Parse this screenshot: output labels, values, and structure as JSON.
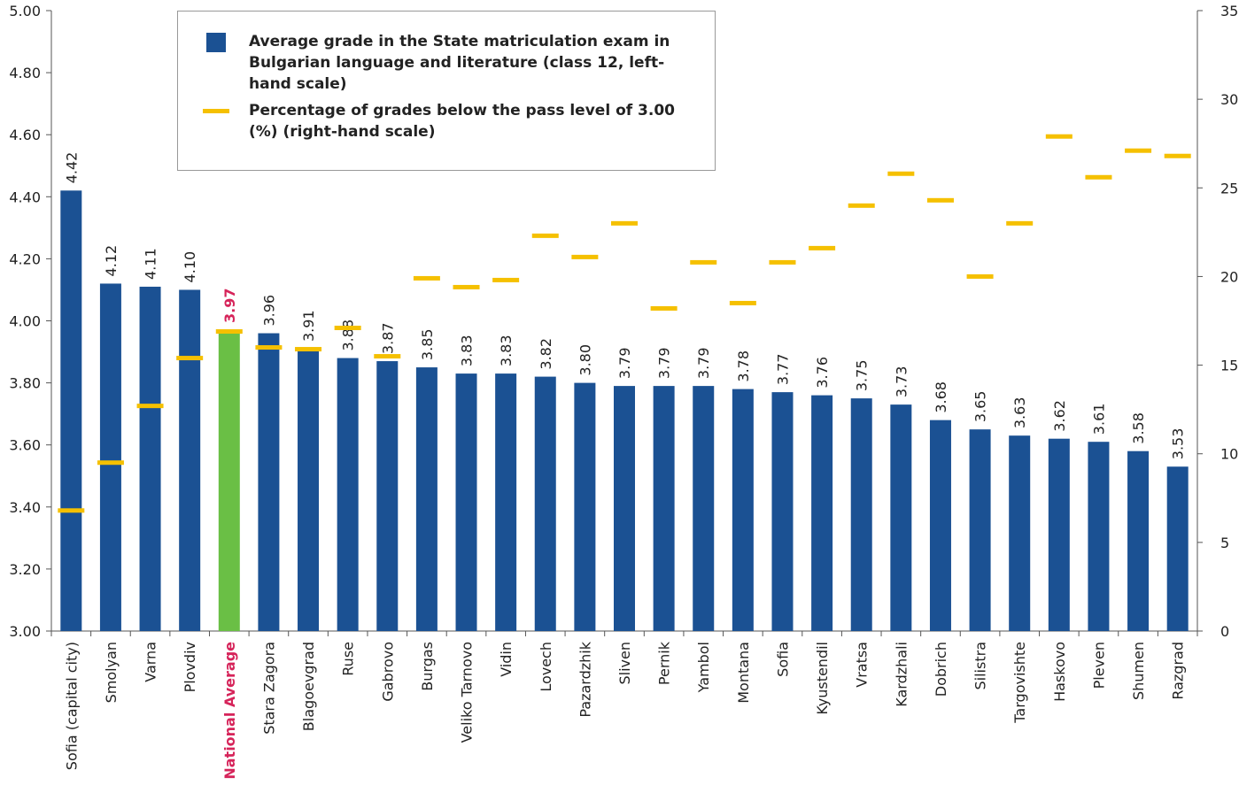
{
  "chart_data": {
    "type": "bar",
    "categories": [
      "Sofia (capital city)",
      "Smolyan",
      "Varna",
      "Plovdiv",
      "National Average",
      "Stara Zagora",
      "Blagoevgrad",
      "Ruse",
      "Gabrovo",
      "Burgas",
      "Veliko Tarnovo",
      "Vidin",
      "Lovech",
      "Pazardzhik",
      "Sliven",
      "Pernik",
      "Yambol",
      "Montana",
      "Sofia",
      "Kyustendil",
      "Vratsa",
      "Kardzhali",
      "Dobrich",
      "Silistra",
      "Targovishte",
      "Haskovo",
      "Pleven",
      "Shumen",
      "Razgrad"
    ],
    "label_colors": [
      "#222222",
      "#222222",
      "#222222",
      "#222222",
      "#d6245a",
      "#222222",
      "#222222",
      "#222222",
      "#222222",
      "#222222",
      "#222222",
      "#222222",
      "#222222",
      "#222222",
      "#222222",
      "#222222",
      "#222222",
      "#222222",
      "#222222",
      "#222222",
      "#222222",
      "#222222",
      "#222222",
      "#222222",
      "#222222",
      "#222222",
      "#222222",
      "#222222",
      "#222222"
    ],
    "series": [
      {
        "name": "Average grade in the State matriculation exam in Bulgarian language and literature (class 12, left-hand scale)",
        "color": "#1b5193",
        "colors": [
          "#1b5193",
          "#1b5193",
          "#1b5193",
          "#1b5193",
          "#6abf45",
          "#1b5193",
          "#1b5193",
          "#1b5193",
          "#1b5193",
          "#1b5193",
          "#1b5193",
          "#1b5193",
          "#1b5193",
          "#1b5193",
          "#1b5193",
          "#1b5193",
          "#1b5193",
          "#1b5193",
          "#1b5193",
          "#1b5193",
          "#1b5193",
          "#1b5193",
          "#1b5193",
          "#1b5193",
          "#1b5193",
          "#1b5193",
          "#1b5193",
          "#1b5193",
          "#1b5193"
        ],
        "values": [
          4.42,
          4.12,
          4.11,
          4.1,
          3.97,
          3.96,
          3.91,
          3.88,
          3.87,
          3.85,
          3.83,
          3.83,
          3.82,
          3.8,
          3.79,
          3.79,
          3.79,
          3.78,
          3.77,
          3.76,
          3.75,
          3.73,
          3.68,
          3.65,
          3.63,
          3.62,
          3.61,
          3.58,
          3.53
        ],
        "value_labels": [
          "4.42",
          "4.12",
          "4.11",
          "4.10",
          "3.97",
          "3.96",
          "3.91",
          "3.88",
          "3.87",
          "3.85",
          "3.83",
          "3.83",
          "3.82",
          "3.80",
          "3.79",
          "3.79",
          "3.79",
          "3.78",
          "3.77",
          "3.76",
          "3.75",
          "3.73",
          "3.68",
          "3.65",
          "3.63",
          "3.62",
          "3.61",
          "3.58",
          "3.53"
        ]
      },
      {
        "name": "Percentage of grades below the pass level of 3.00 (%) (right-hand scale)",
        "color": "#f5c000",
        "axis": "y2",
        "values": [
          6.8,
          9.5,
          12.7,
          15.4,
          16.9,
          16.0,
          15.9,
          17.1,
          15.5,
          19.9,
          19.4,
          19.8,
          22.3,
          21.1,
          23.0,
          18.2,
          20.8,
          18.5,
          20.8,
          21.6,
          24.0,
          25.8,
          24.3,
          20.0,
          23.0,
          27.9,
          25.6,
          27.1,
          26.8
        ]
      }
    ],
    "ylim": [
      3.0,
      5.0
    ],
    "yticks": [
      {
        "value": 3.0,
        "label": "3.00"
      },
      {
        "value": 3.2,
        "label": "3.20"
      },
      {
        "value": 3.4,
        "label": "3.40"
      },
      {
        "value": 3.6,
        "label": "3.60"
      },
      {
        "value": 3.8,
        "label": "3.80"
      },
      {
        "value": 4.0,
        "label": "4.00"
      },
      {
        "value": 4.2,
        "label": "4.20"
      },
      {
        "value": 4.4,
        "label": "4.40"
      },
      {
        "value": 4.6,
        "label": "4.60"
      },
      {
        "value": 4.8,
        "label": "4.80"
      },
      {
        "value": 5.0,
        "label": "5.00"
      }
    ],
    "y2lim": [
      0,
      35
    ],
    "y2ticks": [
      0,
      5,
      10,
      15,
      20,
      25,
      30,
      35
    ]
  }
}
